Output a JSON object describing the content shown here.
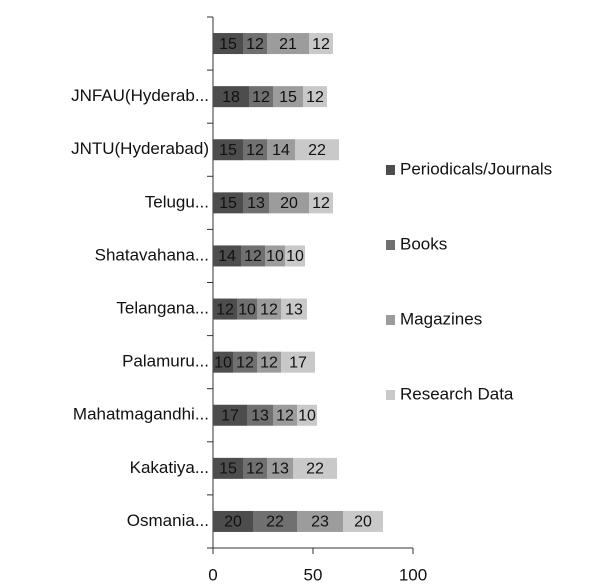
{
  "chart_data": {
    "type": "bar",
    "orientation": "horizontal",
    "stacked": true,
    "categories": [
      null,
      "JNFAU(Hyderab...",
      "JNTU(Hyderabad)",
      "Telugu...",
      "Shatavahana...",
      "Telangana...",
      "Palamuru...",
      "Mahatmagandhi...",
      "Kakatiya...",
      "Osmania..."
    ],
    "series": [
      {
        "name": "Periodicals/Journals",
        "color": "#4d4d4d",
        "values": [
          15,
          18,
          15,
          15,
          14,
          12,
          10,
          17,
          15,
          20
        ]
      },
      {
        "name": "Books",
        "color": "#707070",
        "values": [
          12,
          12,
          12,
          13,
          12,
          10,
          12,
          13,
          12,
          22
        ]
      },
      {
        "name": "Magazines",
        "color": "#9c9c9c",
        "values": [
          21,
          15,
          14,
          20,
          10,
          12,
          12,
          12,
          13,
          23
        ]
      },
      {
        "name": "Research Data",
        "color": "#c9c9c9",
        "values": [
          12,
          12,
          22,
          12,
          10,
          13,
          17,
          10,
          22,
          20
        ]
      }
    ],
    "xlim": [
      0,
      100
    ],
    "xticks": [
      0,
      50,
      100
    ],
    "legend": "right"
  }
}
